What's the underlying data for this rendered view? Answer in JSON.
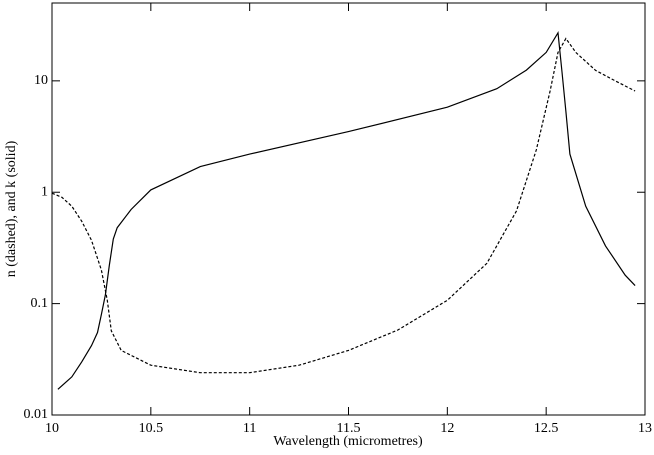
{
  "chart_data": {
    "type": "line",
    "x_label": "Wavelength (micrometres)",
    "y_label": "n (dashed), and k (solid)",
    "xlim": [
      10,
      13
    ],
    "xticks": [
      10,
      10.5,
      11,
      11.5,
      12,
      12.5,
      13
    ],
    "ylim": [
      0.01,
      50
    ],
    "yticks": [
      0.01,
      0.1,
      1,
      10
    ],
    "log_y": true,
    "grid": false,
    "series": [
      {
        "name": "n",
        "color": "#000000",
        "dash": true,
        "x": [
          10.0,
          10.05,
          10.1,
          10.15,
          10.2,
          10.25,
          10.28,
          10.3,
          10.35,
          10.5,
          10.75,
          11,
          11.25,
          11.5,
          11.75,
          12,
          12.2,
          12.35,
          12.45,
          12.52,
          12.56,
          12.6,
          12.65,
          12.75,
          12.85,
          12.95
        ],
        "values": [
          0.98,
          0.9,
          0.75,
          0.55,
          0.37,
          0.2,
          0.107,
          0.057,
          0.038,
          0.028,
          0.024,
          0.024,
          0.028,
          0.038,
          0.058,
          0.107,
          0.23,
          0.68,
          2.4,
          8.1,
          18,
          24,
          18,
          12.4,
          10,
          8.1
        ]
      },
      {
        "name": "k",
        "color": "#000000",
        "dash": false,
        "x": [
          10.03,
          10.1,
          10.15,
          10.2,
          10.23,
          10.25,
          10.27,
          10.29,
          10.31,
          10.33,
          10.4,
          10.5,
          10.75,
          11,
          11.5,
          12,
          12.25,
          12.4,
          12.5,
          12.56,
          12.58,
          12.6,
          12.62,
          12.7,
          12.8,
          12.9,
          12.95
        ],
        "values": [
          0.017,
          0.022,
          0.03,
          0.042,
          0.055,
          0.08,
          0.12,
          0.22,
          0.38,
          0.48,
          0.7,
          1.05,
          1.7,
          2.2,
          3.5,
          5.8,
          8.5,
          12.5,
          18,
          27,
          12,
          5.3,
          2.2,
          0.75,
          0.33,
          0.18,
          0.145
        ]
      }
    ]
  }
}
